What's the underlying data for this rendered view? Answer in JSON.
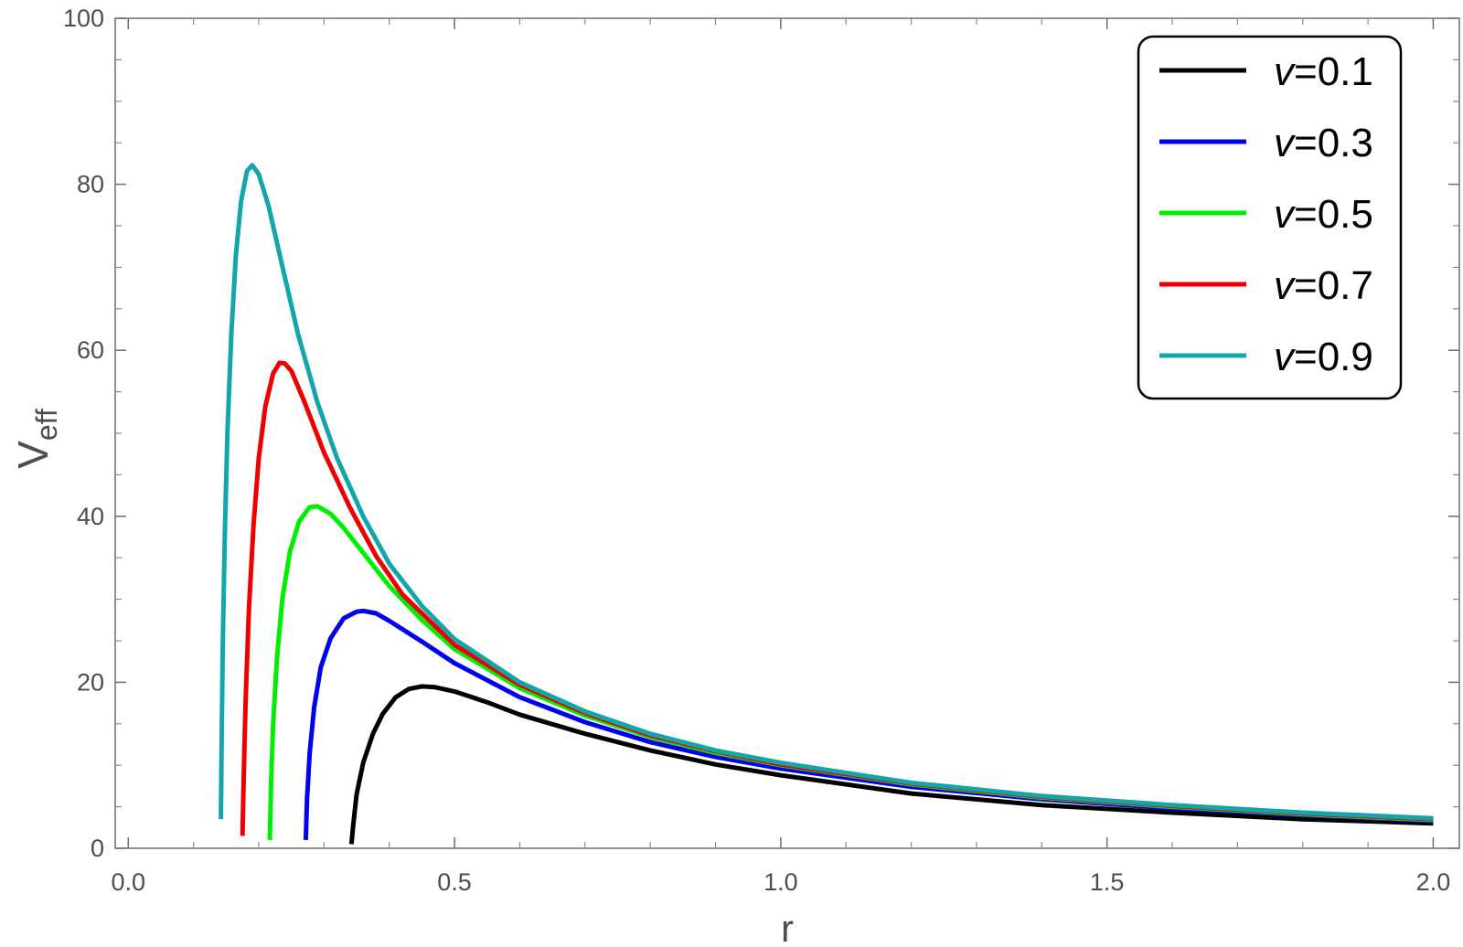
{
  "chart_data": {
    "type": "line",
    "xlabel": "r",
    "ylabel": "V",
    "ylabel_sub": "eff",
    "xlim": [
      -0.02,
      2.04
    ],
    "ylim": [
      0,
      100
    ],
    "x_ticks": [
      0.0,
      0.5,
      1.0,
      1.5,
      2.0
    ],
    "x_tick_labels": [
      "0.0",
      "0.5",
      "1.0",
      "1.5",
      "2.0"
    ],
    "y_ticks": [
      0,
      20,
      40,
      60,
      80,
      100
    ],
    "y_tick_labels": [
      "0",
      "20",
      "40",
      "60",
      "80",
      "100"
    ],
    "grid": false,
    "legend_position": "top-right",
    "series": [
      {
        "name": "v=0.1",
        "legend_prefix": "v",
        "legend_value": "=0.1",
        "color": "#000000",
        "points": [
          [
            0.342,
            0.5
          ],
          [
            0.345,
            3
          ],
          [
            0.35,
            6.5
          ],
          [
            0.36,
            10.3
          ],
          [
            0.375,
            13.8
          ],
          [
            0.39,
            16.2
          ],
          [
            0.41,
            18.2
          ],
          [
            0.43,
            19.2
          ],
          [
            0.45,
            19.5
          ],
          [
            0.47,
            19.4
          ],
          [
            0.5,
            18.9
          ],
          [
            0.55,
            17.6
          ],
          [
            0.6,
            16.1
          ],
          [
            0.7,
            13.8
          ],
          [
            0.8,
            11.8
          ],
          [
            0.9,
            10.1
          ],
          [
            1.0,
            8.8
          ],
          [
            1.2,
            6.6
          ],
          [
            1.4,
            5.2
          ],
          [
            1.6,
            4.3
          ],
          [
            1.8,
            3.5
          ],
          [
            2.0,
            3.0
          ]
        ]
      },
      {
        "name": "v=0.3",
        "legend_prefix": "v",
        "legend_value": "=0.3",
        "color": "#0000ee",
        "points": [
          [
            0.272,
            1
          ],
          [
            0.274,
            6
          ],
          [
            0.278,
            11.5
          ],
          [
            0.285,
            17
          ],
          [
            0.295,
            21.8
          ],
          [
            0.31,
            25.3
          ],
          [
            0.33,
            27.7
          ],
          [
            0.35,
            28.5
          ],
          [
            0.36,
            28.6
          ],
          [
            0.38,
            28.3
          ],
          [
            0.4,
            27.4
          ],
          [
            0.45,
            24.9
          ],
          [
            0.5,
            22.3
          ],
          [
            0.6,
            18.2
          ],
          [
            0.7,
            15.2
          ],
          [
            0.8,
            12.8
          ],
          [
            0.9,
            11.0
          ],
          [
            1.0,
            9.6
          ],
          [
            1.2,
            7.4
          ],
          [
            1.4,
            5.9
          ],
          [
            1.6,
            4.8
          ],
          [
            1.8,
            4.0
          ],
          [
            2.0,
            3.3
          ]
        ]
      },
      {
        "name": "v=0.5",
        "legend_prefix": "v",
        "legend_value": "=0.5",
        "color": "#00ee00",
        "points": [
          [
            0.217,
            1
          ],
          [
            0.219,
            8
          ],
          [
            0.222,
            15
          ],
          [
            0.228,
            23
          ],
          [
            0.236,
            30
          ],
          [
            0.248,
            35.8
          ],
          [
            0.262,
            39.4
          ],
          [
            0.278,
            41.1
          ],
          [
            0.29,
            41.2
          ],
          [
            0.31,
            40.3
          ],
          [
            0.33,
            38.6
          ],
          [
            0.36,
            35.6
          ],
          [
            0.4,
            31.6
          ],
          [
            0.45,
            27.5
          ],
          [
            0.5,
            24.0
          ],
          [
            0.6,
            19.3
          ],
          [
            0.7,
            16.0
          ],
          [
            0.8,
            13.4
          ],
          [
            0.9,
            11.5
          ],
          [
            1.0,
            10.0
          ],
          [
            1.2,
            7.7
          ],
          [
            1.4,
            6.1
          ],
          [
            1.6,
            5.0
          ],
          [
            1.8,
            4.1
          ],
          [
            2.0,
            3.4
          ]
        ]
      },
      {
        "name": "v=0.7",
        "legend_prefix": "v",
        "legend_value": "=0.7",
        "color": "#ee0000",
        "points": [
          [
            0.175,
            1.5
          ],
          [
            0.177,
            9
          ],
          [
            0.18,
            18
          ],
          [
            0.185,
            29
          ],
          [
            0.192,
            39
          ],
          [
            0.2,
            47
          ],
          [
            0.21,
            53.2
          ],
          [
            0.222,
            57.2
          ],
          [
            0.232,
            58.5
          ],
          [
            0.24,
            58.4
          ],
          [
            0.25,
            57.5
          ],
          [
            0.27,
            53.8
          ],
          [
            0.3,
            47.7
          ],
          [
            0.34,
            41.0
          ],
          [
            0.38,
            35.2
          ],
          [
            0.42,
            30.6
          ],
          [
            0.5,
            24.5
          ],
          [
            0.6,
            19.7
          ],
          [
            0.7,
            16.3
          ],
          [
            0.8,
            13.6
          ],
          [
            0.9,
            11.7
          ],
          [
            1.0,
            10.1
          ],
          [
            1.2,
            7.8
          ],
          [
            1.4,
            6.2
          ],
          [
            1.6,
            5.1
          ],
          [
            1.8,
            4.2
          ],
          [
            2.0,
            3.5
          ]
        ]
      },
      {
        "name": "v=0.9",
        "legend_prefix": "v",
        "legend_value": "=0.9",
        "color": "#14a5aa",
        "points": [
          [
            0.142,
            3.5
          ],
          [
            0.143,
            12
          ],
          [
            0.145,
            25
          ],
          [
            0.148,
            38
          ],
          [
            0.152,
            50
          ],
          [
            0.158,
            62
          ],
          [
            0.165,
            71.5
          ],
          [
            0.173,
            78
          ],
          [
            0.182,
            81.6
          ],
          [
            0.19,
            82.3
          ],
          [
            0.2,
            81.2
          ],
          [
            0.215,
            77.4
          ],
          [
            0.235,
            70.5
          ],
          [
            0.26,
            62.0
          ],
          [
            0.29,
            53.7
          ],
          [
            0.32,
            47.0
          ],
          [
            0.36,
            40.0
          ],
          [
            0.4,
            34.3
          ],
          [
            0.45,
            29.2
          ],
          [
            0.5,
            25.2
          ],
          [
            0.6,
            20.0
          ],
          [
            0.7,
            16.5
          ],
          [
            0.8,
            13.8
          ],
          [
            0.9,
            11.8
          ],
          [
            1.0,
            10.3
          ],
          [
            1.2,
            7.9
          ],
          [
            1.4,
            6.3
          ],
          [
            1.6,
            5.2
          ],
          [
            1.8,
            4.3
          ],
          [
            2.0,
            3.6
          ]
        ]
      }
    ]
  }
}
